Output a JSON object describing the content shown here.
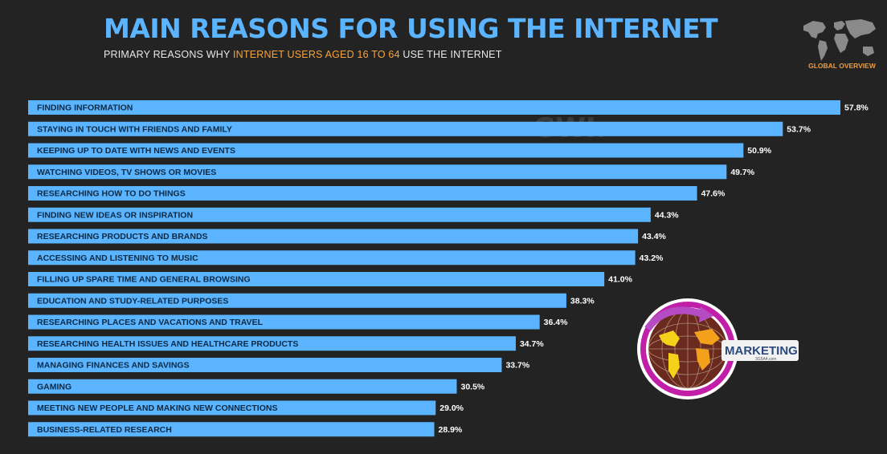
{
  "header": {
    "title": "MAIN REASONS FOR USING THE INTERNET",
    "subtitle_pre": "PRIMARY REASONS WHY ",
    "subtitle_highlight": "INTERNET USERS AGED 16 TO 64",
    "subtitle_post": " USE THE INTERNET",
    "map_label": "GLOBAL OVERVIEW"
  },
  "watermark": {
    "datareportal": "DATAREPORTAL",
    "gwi": "GWI."
  },
  "logo": {
    "text": "MARKETING",
    "subtext": "3G5A4.com"
  },
  "colors": {
    "background": "#232323",
    "bar": "#5ab4ff",
    "title": "#5ab4ff",
    "highlight": "#f7a43a",
    "value_text": "#ffffff"
  },
  "chart_data": {
    "type": "bar",
    "orientation": "horizontal",
    "categories": [
      "FINDING INFORMATION",
      "STAYING IN TOUCH WITH FRIENDS AND FAMILY",
      "KEEPING UP TO DATE WITH NEWS AND EVENTS",
      "WATCHING VIDEOS, TV SHOWS OR MOVIES",
      "RESEARCHING HOW TO DO THINGS",
      "FINDING NEW IDEAS OR INSPIRATION",
      "RESEARCHING PRODUCTS AND BRANDS",
      "ACCESSING AND LISTENING TO MUSIC",
      "FILLING UP SPARE TIME AND GENERAL BROWSING",
      "EDUCATION AND STUDY-RELATED PURPOSES",
      "RESEARCHING PLACES AND VACATIONS AND TRAVEL",
      "RESEARCHING HEALTH ISSUES AND HEALTHCARE PRODUCTS",
      "MANAGING FINANCES AND SAVINGS",
      "GAMING",
      "MEETING NEW PEOPLE AND MAKING NEW CONNECTIONS",
      "BUSINESS-RELATED RESEARCH"
    ],
    "values": [
      57.8,
      53.7,
      50.9,
      49.7,
      47.6,
      44.3,
      43.4,
      43.2,
      41.0,
      38.3,
      36.4,
      34.7,
      33.7,
      30.5,
      29.0,
      28.9
    ],
    "value_labels": [
      "57.8%",
      "53.7%",
      "50.9%",
      "49.7%",
      "47.6%",
      "44.3%",
      "43.4%",
      "43.2%",
      "41.0%",
      "38.3%",
      "36.4%",
      "34.7%",
      "33.7%",
      "30.5%",
      "29.0%",
      "28.9%"
    ],
    "xlim": [
      0,
      57.8
    ],
    "grid": false,
    "legend": "none"
  }
}
